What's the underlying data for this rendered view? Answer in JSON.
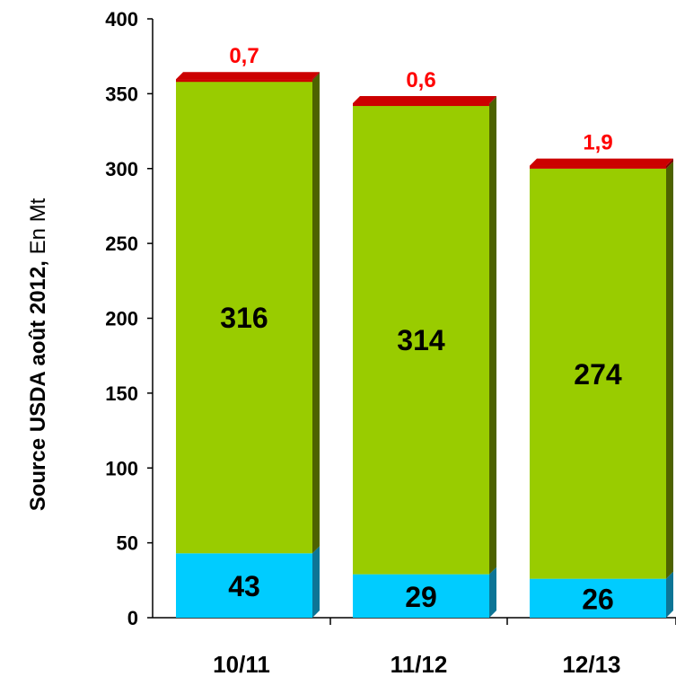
{
  "chart_data": {
    "type": "bar",
    "stacked": true,
    "categories": [
      "10/11",
      "11/12",
      "12/13"
    ],
    "series": [
      {
        "values": [
          43,
          29,
          26
        ],
        "labels": [
          "43",
          "29",
          "26"
        ]
      },
      {
        "values": [
          316,
          314,
          274
        ],
        "labels": [
          "316",
          "314",
          "274"
        ]
      },
      {
        "values": [
          0.7,
          0.6,
          1.9
        ],
        "labels": [
          "0,7",
          "0,6",
          "1,9"
        ]
      }
    ],
    "ylabel_main": "Source USDA août 2012,",
    "ylabel_unit": " En Mt",
    "ylim": [
      0,
      400
    ],
    "yticks": [
      0,
      50,
      100,
      150,
      200,
      250,
      300,
      350,
      400
    ],
    "grid": false,
    "colors": {
      "bottom_front": "#00ccff",
      "bottom_side": "#0d7596",
      "middle_front": "#99cc00",
      "middle_side": "#4d6200",
      "top_front": "#cc0000",
      "top_side": "#800000",
      "top_label": "#ff0000"
    }
  }
}
